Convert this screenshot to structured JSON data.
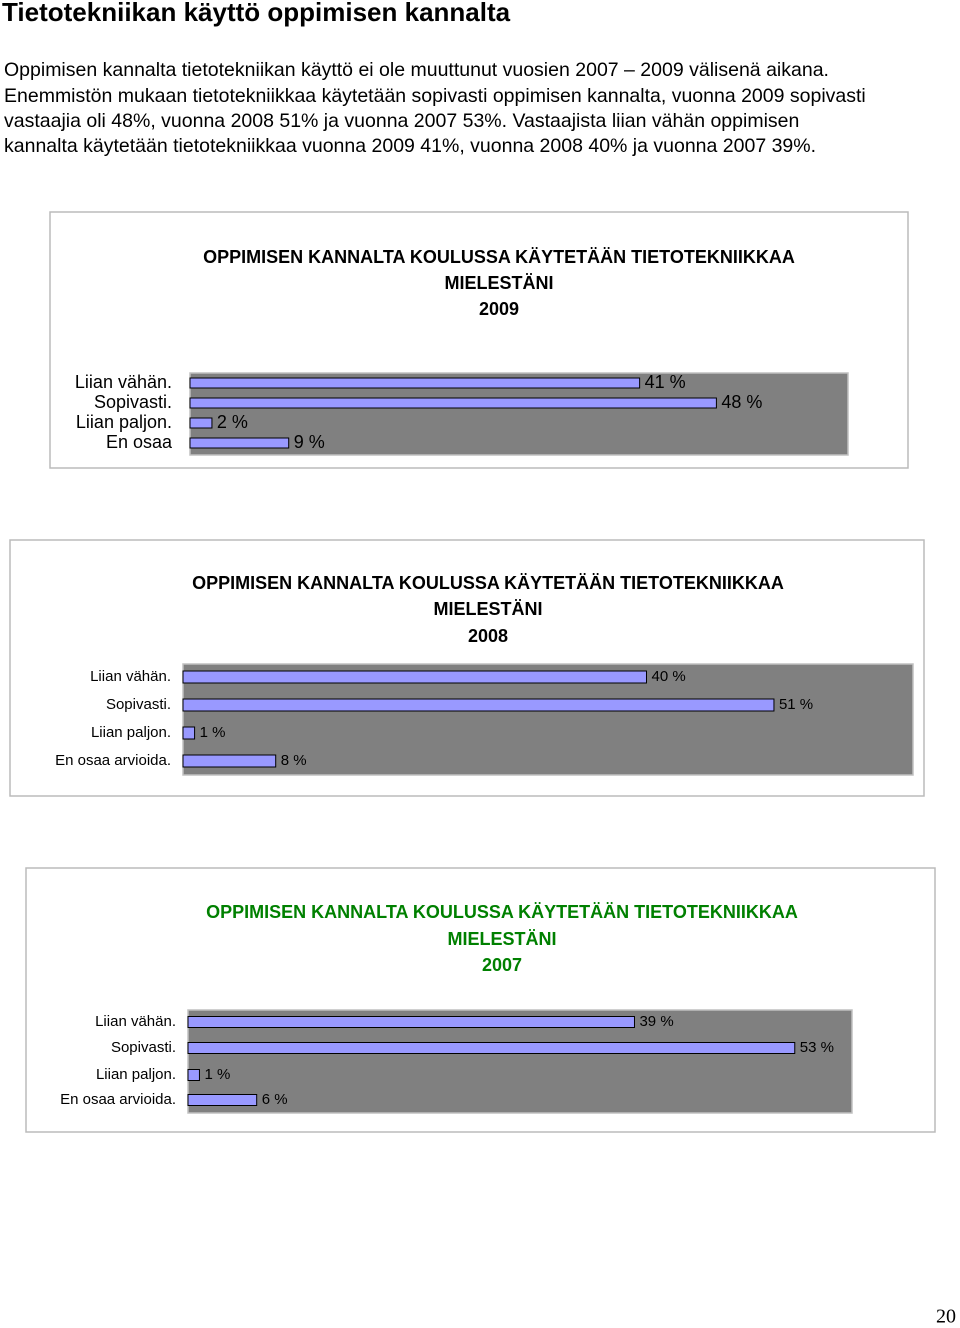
{
  "header": {
    "title": "Tietotekniikan käyttö oppimisen kannalta"
  },
  "paragraph": [
    "Oppimisen kannalta tietotekniikan käyttö ei ole muuttunut vuosien 2007 – 2009 välisenä aikana.",
    "Enemmistön mukaan tietotekniikkaa käytetään sopivasti oppimisen kannalta, vuonna 2009 sopivasti",
    "vastaajia oli 48%, vuonna 2008 51% ja vuonna 2007 53%. Vastaajista liian vähän oppimisen",
    "kannalta käytetään tietotekniikkaa vuonna 2009 41%, vuonna 2008 40% ja vuonna 2007 39%."
  ],
  "chart_data": [
    {
      "type": "bar",
      "orientation": "horizontal",
      "title": [
        "OPPIMISEN KANNALTA KOULUSSA KÄYTETÄÄN TIETOTEKNIIKKAA",
        "MIELESTÄNI",
        "2009"
      ],
      "title_color": "#000000",
      "color": "#9999ff",
      "plot_color": "#808080",
      "categories": [
        "Liian vähän.",
        "Sopivasti.",
        "Liian paljon.",
        "En osaa"
      ],
      "values": [
        41,
        48,
        2,
        9
      ],
      "value_labels": [
        "41 %",
        "48 %",
        "2 %",
        "9 %"
      ],
      "xlim": [
        0,
        60
      ]
    },
    {
      "type": "bar",
      "orientation": "horizontal",
      "title": [
        "OPPIMISEN KANNALTA KOULUSSA KÄYTETÄÄN TIETOTEKNIIKKAA",
        "MIELESTÄNI",
        "2008"
      ],
      "title_color": "#000000",
      "color": "#9999ff",
      "plot_color": "#808080",
      "categories": [
        "Liian vähän.",
        "Sopivasti.",
        "Liian paljon.",
        "En osaa arvioida."
      ],
      "values": [
        40,
        51,
        1,
        8
      ],
      "value_labels": [
        "40 %",
        "51 %",
        "1 %",
        "8 %"
      ],
      "xlim": [
        0,
        63
      ]
    },
    {
      "type": "bar",
      "orientation": "horizontal",
      "title": [
        "OPPIMISEN KANNALTA KOULUSSA KÄYTETÄÄN TIETOTEKNIIKKAA",
        "MIELESTÄNI",
        "2007"
      ],
      "title_color": "#008000",
      "color": "#9999ff",
      "plot_color": "#808080",
      "categories": [
        "Liian vähän.",
        "Sopivasti.",
        "Liian paljon.",
        "En osaa arvioida."
      ],
      "values": [
        39,
        53,
        1,
        6
      ],
      "value_labels": [
        "39 %",
        "53 %",
        "1 %",
        "6 %"
      ],
      "xlim": [
        0,
        58
      ]
    }
  ],
  "page_number": "20"
}
